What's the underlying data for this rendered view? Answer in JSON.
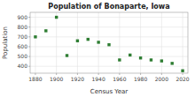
{
  "chart_data": {
    "type": "scatter",
    "title": "Population of Bonaparte, Iowa",
    "xlabel": "Census Year",
    "ylabel": "Population",
    "x": [
      1880,
      1890,
      1900,
      1910,
      1920,
      1930,
      1940,
      1950,
      1960,
      1970,
      1980,
      1990,
      2000,
      2010,
      2020
    ],
    "values": [
      700,
      762,
      900,
      510,
      660,
      675,
      645,
      620,
      465,
      515,
      485,
      465,
      455,
      430,
      355
    ],
    "color": "#2e7d32",
    "marker": "square",
    "xlim": [
      1875,
      2025
    ],
    "ylim": [
      330,
      950
    ],
    "xticks": [
      1880,
      1900,
      1920,
      1940,
      1960,
      1980,
      2000,
      2020
    ],
    "yticks": [
      400,
      500,
      600,
      700,
      800,
      900
    ],
    "grid": true
  }
}
